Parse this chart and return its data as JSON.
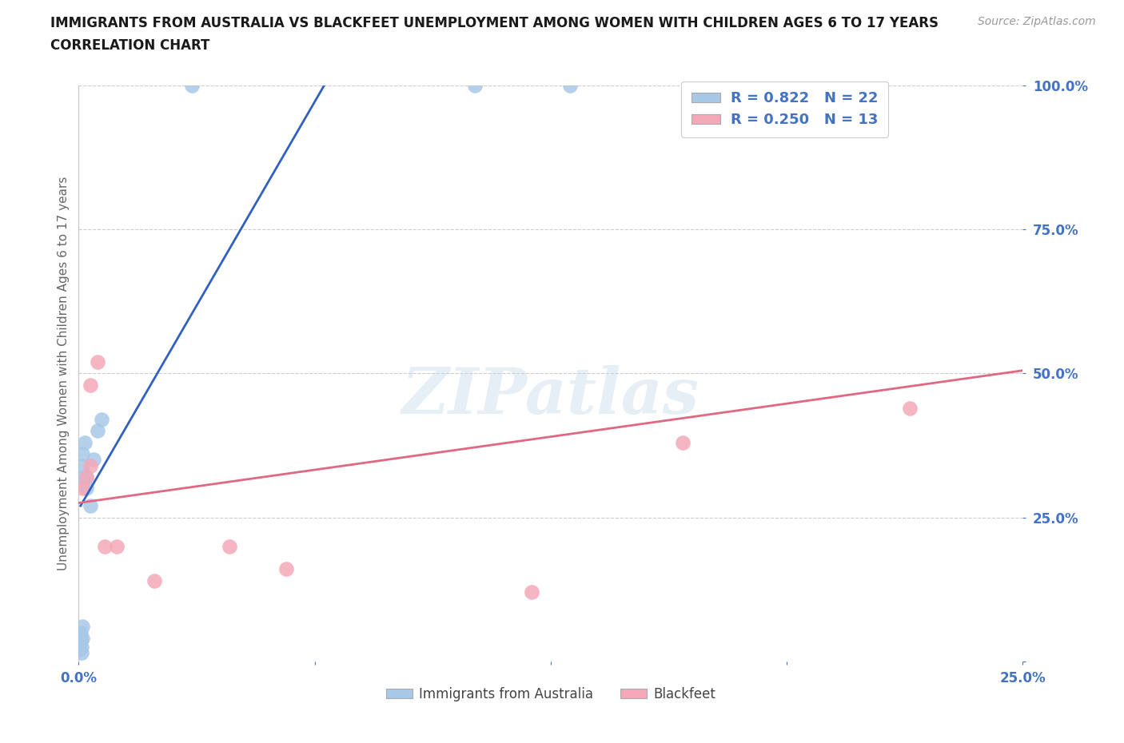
{
  "title_line1": "IMMIGRANTS FROM AUSTRALIA VS BLACKFEET UNEMPLOYMENT AMONG WOMEN WITH CHILDREN AGES 6 TO 17 YEARS",
  "title_line2": "CORRELATION CHART",
  "source": "Source: ZipAtlas.com",
  "ylabel": "Unemployment Among Women with Children Ages 6 to 17 years",
  "xlim": [
    0.0,
    0.25
  ],
  "ylim": [
    0.0,
    1.0
  ],
  "australia_color": "#a8c8e8",
  "blackfeet_color": "#f4a8b8",
  "australia_line_color": "#3060c0",
  "blackfeet_line_color": "#e06880",
  "legend_text_color": "#4472c4",
  "tick_color": "#4472c4",
  "ylabel_color": "#666666",
  "background_color": "#ffffff",
  "grid_color": "#cccccc",
  "australia_R": 0.822,
  "australia_N": 22,
  "blackfeet_R": 0.25,
  "blackfeet_N": 13,
  "australia_x": [
    0.0002,
    0.0003,
    0.0004,
    0.0005,
    0.0006,
    0.0007,
    0.0008,
    0.001,
    0.001,
    0.001,
    0.001,
    0.001,
    0.0015,
    0.002,
    0.002,
    0.003,
    0.004,
    0.005,
    0.006,
    0.03,
    0.105,
    0.13
  ],
  "australia_y": [
    0.02,
    0.03,
    0.04,
    0.05,
    0.035,
    0.025,
    0.015,
    0.06,
    0.04,
    0.32,
    0.34,
    0.36,
    0.38,
    0.3,
    0.32,
    0.27,
    0.35,
    0.4,
    0.42,
    1.0,
    1.0,
    1.0
  ],
  "blackfeet_x": [
    0.001,
    0.002,
    0.003,
    0.003,
    0.005,
    0.007,
    0.01,
    0.02,
    0.04,
    0.055,
    0.16,
    0.22,
    0.12
  ],
  "blackfeet_y": [
    0.3,
    0.32,
    0.34,
    0.48,
    0.52,
    0.2,
    0.2,
    0.14,
    0.2,
    0.16,
    0.38,
    0.44,
    0.12
  ],
  "aus_line_x1": 0.0005,
  "aus_line_y1": 0.27,
  "aus_line_x2": 0.065,
  "aus_line_y2": 1.0,
  "bf_line_x1": 0.0,
  "bf_line_y1": 0.275,
  "bf_line_x2": 0.25,
  "bf_line_y2": 0.505
}
